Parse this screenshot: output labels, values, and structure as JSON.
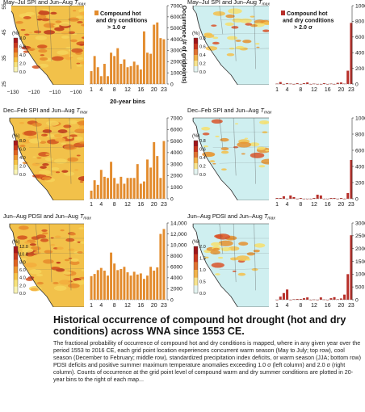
{
  "figure": {
    "colorbar_label": "(%)",
    "colorbar_ticks": {
      "default": [
        "8.0",
        "6.0",
        "4.0",
        "2.0",
        "0.0"
      ],
      "pdsi_left": [
        "12.0",
        "10.0",
        "8.0",
        "6.0",
        "4.0",
        "2.0",
        "0.0"
      ],
      "high": [
        "0.8",
        "0.6",
        "0.4",
        "0.2",
        "0.0"
      ],
      "pdsi_right": [
        "2.0",
        "1.5",
        "1.0",
        "0.5",
        "0.0"
      ]
    },
    "map_lat_ticks": [
      "25",
      "35",
      "45",
      "55"
    ],
    "map_lon_ticks": [
      "−130",
      "−120",
      "−110",
      "−100"
    ],
    "legend_left": [
      "Compound hot",
      "and dry conditions",
      "> 1.0 σ"
    ],
    "legend_right": [
      "Compound hot",
      "and dry conditions",
      "> 2.0 σ"
    ],
    "colors": {
      "bar_left": "#e38c2e",
      "bar_right": "#b8302a",
      "map_sea": "#ffffff",
      "map_low_land": "#cfeff0"
    }
  },
  "panels": [
    {
      "id": "a",
      "title": "May–Jul SPI and Jun–Aug ",
      "tmax": "T",
      "tmax_sub": "max",
      "ticks": "default"
    },
    {
      "id": "b",
      "title": "May–Jul SPI and Jun–Aug ",
      "tmax": "T",
      "tmax_sub": "max",
      "ticks": "high"
    },
    {
      "id": "c",
      "title": "Dec–Feb SPI and Jun–Aug ",
      "tmax": "T",
      "tmax_sub": "max",
      "ticks": "default"
    },
    {
      "id": "d",
      "title": "Dec–Feb SPI and Jun–Aug ",
      "tmax": "T",
      "tmax_sub": "max",
      "ticks": "high"
    },
    {
      "id": "e",
      "title": "Jun–Aug PDSI and Jun–Aug ",
      "tmax": "T",
      "tmax_sub": "max",
      "ticks": "pdsi_left"
    },
    {
      "id": "f",
      "title": "Jun–Aug PDSI and Jun–Aug ",
      "tmax": "T",
      "tmax_sub": "max",
      "ticks": "pdsi_right"
    }
  ],
  "chart_data": [
    {
      "type": "bar",
      "id": "a-bars",
      "xlabel": "20-year bins",
      "ylabel": "Occurrence (# of gridpoints)",
      "x_ticks": [
        "1",
        "4",
        "8",
        "12",
        "16",
        "20",
        "23"
      ],
      "ylim": [
        0,
        7000
      ],
      "y_ticks": [
        "0",
        "1000",
        "2000",
        "3000",
        "4000",
        "5000",
        "6000",
        "7000"
      ],
      "values": [
        1150,
        2500,
        1500,
        700,
        1800,
        700,
        2800,
        2500,
        3200,
        1800,
        2200,
        1500,
        1600,
        2000,
        1700,
        1300,
        4700,
        2800,
        2700,
        5300,
        5500,
        4100,
        4000
      ]
    },
    {
      "type": "bar",
      "id": "b-bars",
      "x_ticks": [
        "1",
        "4",
        "8",
        "12",
        "16",
        "20",
        "23"
      ],
      "ylim": [
        0,
        1000
      ],
      "y_ticks": [
        "0",
        "200",
        "400",
        "600",
        "800",
        "1000"
      ],
      "values": [
        5,
        25,
        0,
        10,
        5,
        0,
        10,
        0,
        10,
        20,
        0,
        5,
        0,
        0,
        10,
        0,
        5,
        0,
        15,
        20,
        5,
        170,
        780
      ]
    },
    {
      "type": "bar",
      "id": "c-bars",
      "x_ticks": [
        "1",
        "4",
        "8",
        "12",
        "16",
        "20",
        "23"
      ],
      "ylim": [
        0,
        7000
      ],
      "y_ticks": [
        "0",
        "1000",
        "2000",
        "3000",
        "4000",
        "5000",
        "6000",
        "7000"
      ],
      "values": [
        700,
        1600,
        1200,
        2500,
        1900,
        1800,
        3200,
        1800,
        1300,
        1900,
        1300,
        1800,
        1800,
        1800,
        3000,
        1300,
        1500,
        3400,
        2700,
        4900,
        3700,
        1800,
        5000
      ]
    },
    {
      "type": "bar",
      "id": "d-bars",
      "x_ticks": [
        "1",
        "4",
        "8",
        "12",
        "16",
        "20",
        "23"
      ],
      "ylim": [
        0,
        1000
      ],
      "y_ticks": [
        "0",
        "200",
        "400",
        "600",
        "800",
        "1000"
      ],
      "values": [
        10,
        10,
        30,
        0,
        40,
        20,
        0,
        10,
        0,
        0,
        0,
        10,
        50,
        40,
        0,
        0,
        10,
        10,
        0,
        10,
        0,
        70,
        480
      ]
    },
    {
      "type": "bar",
      "id": "e-bars",
      "x_ticks": [
        "1",
        "4",
        "8",
        "12",
        "16",
        "20",
        "23"
      ],
      "ylim": [
        0,
        14000
      ],
      "y_ticks": [
        "0",
        "2000",
        "4000",
        "6000",
        "8000",
        "10,000",
        "12,000",
        "14,000"
      ],
      "values": [
        4300,
        4700,
        5400,
        5800,
        5300,
        4400,
        8600,
        6600,
        5400,
        5600,
        6000,
        5000,
        4400,
        5100,
        4600,
        4800,
        3800,
        4400,
        6000,
        5300,
        5900,
        12000,
        12900
      ]
    },
    {
      "type": "bar",
      "id": "f-bars",
      "x_ticks": [
        "1",
        "4",
        "8",
        "12",
        "16",
        "20",
        "23"
      ],
      "ylim": [
        0,
        3000
      ],
      "y_ticks": [
        "0",
        "500",
        "1000",
        "1500",
        "2000",
        "2500",
        "3000"
      ],
      "values": [
        0,
        120,
        260,
        400,
        0,
        20,
        30,
        30,
        60,
        90,
        0,
        10,
        0,
        90,
        10,
        0,
        60,
        100,
        20,
        50,
        200,
        1000,
        2520
      ]
    }
  ],
  "caption": {
    "title": "Historical occurrence of compound hot drought (hot and dry conditions) across WNA since 1553 CE.",
    "body": "The fractional probability of occurrence of compound hot and dry conditions is mapped, where in any given year over the period 1553 to 2016 CE, each grid point location experiences concurrent warm season (May to July; top row), cool season (December to February; middle row), standardized precipitation index deficits, or warm season (JJA; bottom row) PDSI deficits and positive summer maximum temperature anomalies exceeding 1.0 σ (left column) and 2.0 σ (right column). Counts of occurrence at the grid point level of compound warm and dry summer conditions are plotted in 20-year bins to the right of each map..."
  }
}
